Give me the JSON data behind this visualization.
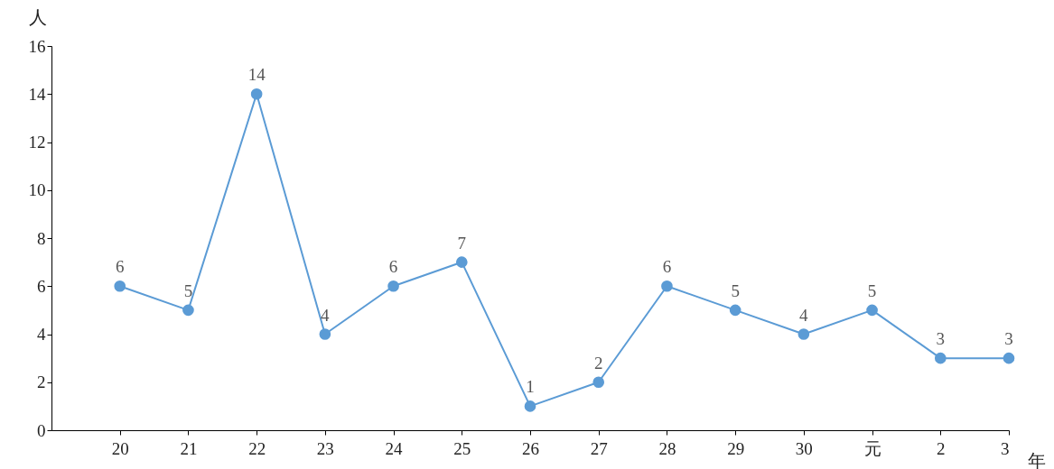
{
  "chart_data": {
    "type": "line",
    "xlabel": "年",
    "ylabel": "人",
    "categories": [
      "20",
      "21",
      "22",
      "23",
      "24",
      "25",
      "26",
      "27",
      "28",
      "29",
      "30",
      "元",
      "2",
      "3"
    ],
    "values": [
      6,
      5,
      14,
      4,
      6,
      7,
      1,
      2,
      6,
      5,
      4,
      5,
      3,
      3
    ],
    "color": "#5b9bd5",
    "ylim": [
      0,
      16
    ],
    "yticks": [
      0,
      2,
      4,
      6,
      8,
      10,
      12,
      14,
      16
    ],
    "data_labels": true,
    "marker": "circle"
  }
}
